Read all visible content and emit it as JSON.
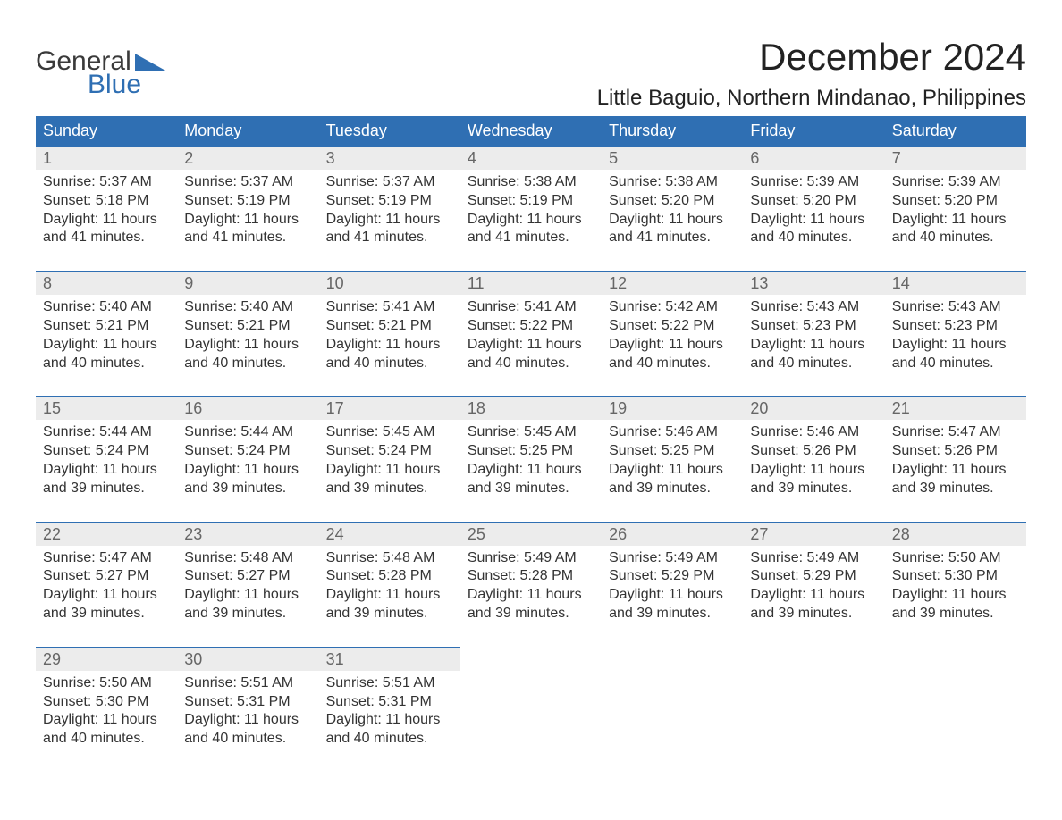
{
  "logo": {
    "text_top": "General",
    "text_bottom": "Blue",
    "triangle_color": "#2f6fb3"
  },
  "header": {
    "month_title": "December 2024",
    "location": "Little Baguio, Northern Mindanao, Philippines"
  },
  "colors": {
    "header_bg": "#2f6fb3",
    "header_text": "#ffffff",
    "daynum_bg": "#ececec",
    "row_border": "#2f6fb3",
    "body_text": "#333333"
  },
  "columns": [
    "Sunday",
    "Monday",
    "Tuesday",
    "Wednesday",
    "Thursday",
    "Friday",
    "Saturday"
  ],
  "weeks": [
    [
      {
        "day": "1",
        "sunrise": "Sunrise: 5:37 AM",
        "sunset": "Sunset: 5:18 PM",
        "daylight1": "Daylight: 11 hours",
        "daylight2": "and 41 minutes."
      },
      {
        "day": "2",
        "sunrise": "Sunrise: 5:37 AM",
        "sunset": "Sunset: 5:19 PM",
        "daylight1": "Daylight: 11 hours",
        "daylight2": "and 41 minutes."
      },
      {
        "day": "3",
        "sunrise": "Sunrise: 5:37 AM",
        "sunset": "Sunset: 5:19 PM",
        "daylight1": "Daylight: 11 hours",
        "daylight2": "and 41 minutes."
      },
      {
        "day": "4",
        "sunrise": "Sunrise: 5:38 AM",
        "sunset": "Sunset: 5:19 PM",
        "daylight1": "Daylight: 11 hours",
        "daylight2": "and 41 minutes."
      },
      {
        "day": "5",
        "sunrise": "Sunrise: 5:38 AM",
        "sunset": "Sunset: 5:20 PM",
        "daylight1": "Daylight: 11 hours",
        "daylight2": "and 41 minutes."
      },
      {
        "day": "6",
        "sunrise": "Sunrise: 5:39 AM",
        "sunset": "Sunset: 5:20 PM",
        "daylight1": "Daylight: 11 hours",
        "daylight2": "and 40 minutes."
      },
      {
        "day": "7",
        "sunrise": "Sunrise: 5:39 AM",
        "sunset": "Sunset: 5:20 PM",
        "daylight1": "Daylight: 11 hours",
        "daylight2": "and 40 minutes."
      }
    ],
    [
      {
        "day": "8",
        "sunrise": "Sunrise: 5:40 AM",
        "sunset": "Sunset: 5:21 PM",
        "daylight1": "Daylight: 11 hours",
        "daylight2": "and 40 minutes."
      },
      {
        "day": "9",
        "sunrise": "Sunrise: 5:40 AM",
        "sunset": "Sunset: 5:21 PM",
        "daylight1": "Daylight: 11 hours",
        "daylight2": "and 40 minutes."
      },
      {
        "day": "10",
        "sunrise": "Sunrise: 5:41 AM",
        "sunset": "Sunset: 5:21 PM",
        "daylight1": "Daylight: 11 hours",
        "daylight2": "and 40 minutes."
      },
      {
        "day": "11",
        "sunrise": "Sunrise: 5:41 AM",
        "sunset": "Sunset: 5:22 PM",
        "daylight1": "Daylight: 11 hours",
        "daylight2": "and 40 minutes."
      },
      {
        "day": "12",
        "sunrise": "Sunrise: 5:42 AM",
        "sunset": "Sunset: 5:22 PM",
        "daylight1": "Daylight: 11 hours",
        "daylight2": "and 40 minutes."
      },
      {
        "day": "13",
        "sunrise": "Sunrise: 5:43 AM",
        "sunset": "Sunset: 5:23 PM",
        "daylight1": "Daylight: 11 hours",
        "daylight2": "and 40 minutes."
      },
      {
        "day": "14",
        "sunrise": "Sunrise: 5:43 AM",
        "sunset": "Sunset: 5:23 PM",
        "daylight1": "Daylight: 11 hours",
        "daylight2": "and 40 minutes."
      }
    ],
    [
      {
        "day": "15",
        "sunrise": "Sunrise: 5:44 AM",
        "sunset": "Sunset: 5:24 PM",
        "daylight1": "Daylight: 11 hours",
        "daylight2": "and 39 minutes."
      },
      {
        "day": "16",
        "sunrise": "Sunrise: 5:44 AM",
        "sunset": "Sunset: 5:24 PM",
        "daylight1": "Daylight: 11 hours",
        "daylight2": "and 39 minutes."
      },
      {
        "day": "17",
        "sunrise": "Sunrise: 5:45 AM",
        "sunset": "Sunset: 5:24 PM",
        "daylight1": "Daylight: 11 hours",
        "daylight2": "and 39 minutes."
      },
      {
        "day": "18",
        "sunrise": "Sunrise: 5:45 AM",
        "sunset": "Sunset: 5:25 PM",
        "daylight1": "Daylight: 11 hours",
        "daylight2": "and 39 minutes."
      },
      {
        "day": "19",
        "sunrise": "Sunrise: 5:46 AM",
        "sunset": "Sunset: 5:25 PM",
        "daylight1": "Daylight: 11 hours",
        "daylight2": "and 39 minutes."
      },
      {
        "day": "20",
        "sunrise": "Sunrise: 5:46 AM",
        "sunset": "Sunset: 5:26 PM",
        "daylight1": "Daylight: 11 hours",
        "daylight2": "and 39 minutes."
      },
      {
        "day": "21",
        "sunrise": "Sunrise: 5:47 AM",
        "sunset": "Sunset: 5:26 PM",
        "daylight1": "Daylight: 11 hours",
        "daylight2": "and 39 minutes."
      }
    ],
    [
      {
        "day": "22",
        "sunrise": "Sunrise: 5:47 AM",
        "sunset": "Sunset: 5:27 PM",
        "daylight1": "Daylight: 11 hours",
        "daylight2": "and 39 minutes."
      },
      {
        "day": "23",
        "sunrise": "Sunrise: 5:48 AM",
        "sunset": "Sunset: 5:27 PM",
        "daylight1": "Daylight: 11 hours",
        "daylight2": "and 39 minutes."
      },
      {
        "day": "24",
        "sunrise": "Sunrise: 5:48 AM",
        "sunset": "Sunset: 5:28 PM",
        "daylight1": "Daylight: 11 hours",
        "daylight2": "and 39 minutes."
      },
      {
        "day": "25",
        "sunrise": "Sunrise: 5:49 AM",
        "sunset": "Sunset: 5:28 PM",
        "daylight1": "Daylight: 11 hours",
        "daylight2": "and 39 minutes."
      },
      {
        "day": "26",
        "sunrise": "Sunrise: 5:49 AM",
        "sunset": "Sunset: 5:29 PM",
        "daylight1": "Daylight: 11 hours",
        "daylight2": "and 39 minutes."
      },
      {
        "day": "27",
        "sunrise": "Sunrise: 5:49 AM",
        "sunset": "Sunset: 5:29 PM",
        "daylight1": "Daylight: 11 hours",
        "daylight2": "and 39 minutes."
      },
      {
        "day": "28",
        "sunrise": "Sunrise: 5:50 AM",
        "sunset": "Sunset: 5:30 PM",
        "daylight1": "Daylight: 11 hours",
        "daylight2": "and 39 minutes."
      }
    ],
    [
      {
        "day": "29",
        "sunrise": "Sunrise: 5:50 AM",
        "sunset": "Sunset: 5:30 PM",
        "daylight1": "Daylight: 11 hours",
        "daylight2": "and 40 minutes."
      },
      {
        "day": "30",
        "sunrise": "Sunrise: 5:51 AM",
        "sunset": "Sunset: 5:31 PM",
        "daylight1": "Daylight: 11 hours",
        "daylight2": "and 40 minutes."
      },
      {
        "day": "31",
        "sunrise": "Sunrise: 5:51 AM",
        "sunset": "Sunset: 5:31 PM",
        "daylight1": "Daylight: 11 hours",
        "daylight2": "and 40 minutes."
      },
      null,
      null,
      null,
      null
    ]
  ]
}
